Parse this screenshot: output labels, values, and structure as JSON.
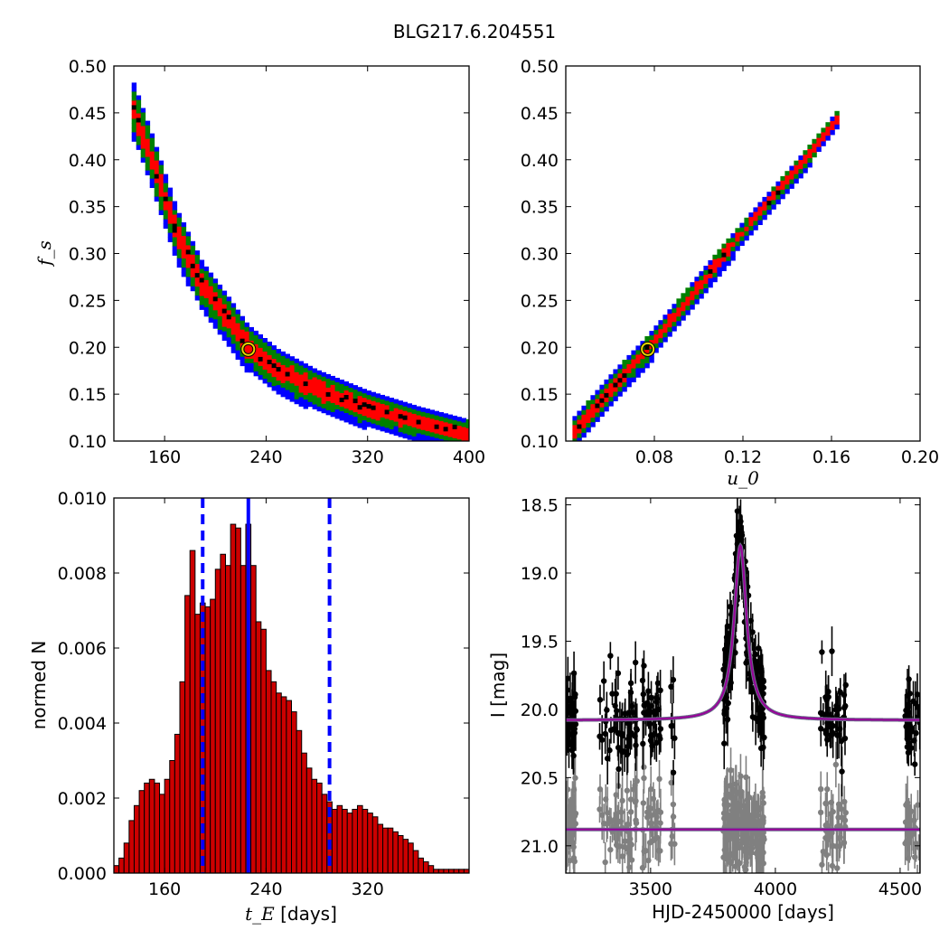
{
  "figure": {
    "title": "BLG217.6.204551"
  },
  "chart_data": [
    {
      "id": "ul",
      "type": "heatmap",
      "title": "",
      "xlabel": "",
      "ylabel": "f_s",
      "xlim": [
        120,
        400
      ],
      "ylim": [
        0.1,
        0.5
      ],
      "xticks": [
        "160",
        "240",
        "320",
        "400"
      ],
      "yticks": [
        "0.10",
        "0.15",
        "0.20",
        "0.25",
        "0.30",
        "0.35",
        "0.40",
        "0.45",
        "0.50"
      ],
      "colors": {
        "outer": "#0000ff",
        "mid": "#008000",
        "inner": "#ff0000",
        "core": "#000000"
      },
      "ridge": [
        [
          134,
          0.46
        ],
        [
          150,
          0.4
        ],
        [
          170,
          0.32
        ],
        [
          190,
          0.265
        ],
        [
          210,
          0.23
        ],
        [
          226,
          0.2
        ],
        [
          250,
          0.175
        ],
        [
          280,
          0.155
        ],
        [
          320,
          0.135
        ],
        [
          360,
          0.12
        ],
        [
          400,
          0.108
        ]
      ],
      "best_fit": [
        226,
        0.198
      ]
    },
    {
      "id": "ur",
      "type": "heatmap",
      "title": "",
      "xlabel": "u_0",
      "ylabel": "",
      "xlim": [
        0.04,
        0.2
      ],
      "ylim": [
        0.1,
        0.5
      ],
      "xticks": [
        "0.08",
        "0.12",
        "0.16",
        "0.20"
      ],
      "yticks": [
        "0.10",
        "0.15",
        "0.20",
        "0.25",
        "0.30",
        "0.35",
        "0.40",
        "0.45",
        "0.50"
      ],
      "colors": {
        "outer": "#0000ff",
        "mid": "#008000",
        "inner": "#ff0000",
        "core": "#000000"
      },
      "ridge": [
        [
          0.043,
          0.107
        ],
        [
          0.062,
          0.16
        ],
        [
          0.077,
          0.198
        ],
        [
          0.095,
          0.25
        ],
        [
          0.112,
          0.3
        ],
        [
          0.13,
          0.35
        ],
        [
          0.148,
          0.4
        ],
        [
          0.163,
          0.445
        ]
      ],
      "best_fit": [
        0.077,
        0.198
      ]
    },
    {
      "id": "ll",
      "type": "bar",
      "title": "",
      "xlabel": "t_E [days]",
      "ylabel": "normed N",
      "xlim": [
        120,
        400
      ],
      "ylim": [
        0,
        0.01
      ],
      "xticks": [
        "160",
        "240",
        "320"
      ],
      "yticks": [
        "0.000",
        "0.002",
        "0.004",
        "0.006",
        "0.008",
        "0.010"
      ],
      "bin_start": 120,
      "bin_width": 4,
      "values": [
        0.0002,
        0.0004,
        0.0008,
        0.0014,
        0.0018,
        0.0022,
        0.0024,
        0.0025,
        0.0024,
        0.0021,
        0.0025,
        0.003,
        0.0037,
        0.0051,
        0.0074,
        0.0086,
        0.0069,
        0.0072,
        0.0071,
        0.0073,
        0.0081,
        0.0085,
        0.0082,
        0.0093,
        0.0092,
        0.0082,
        0.0093,
        0.0082,
        0.0067,
        0.0065,
        0.0054,
        0.0051,
        0.0048,
        0.0047,
        0.0046,
        0.0043,
        0.0038,
        0.0032,
        0.0028,
        0.0025,
        0.0024,
        0.0021,
        0.0019,
        0.0017,
        0.0018,
        0.0017,
        0.0016,
        0.0017,
        0.0018,
        0.0017,
        0.0016,
        0.0015,
        0.0013,
        0.0012,
        0.0012,
        0.0011,
        0.001,
        0.0009,
        0.0008,
        0.0006,
        0.0004,
        0.0003,
        0.0002,
        0.0001,
        0.0001,
        0.0001,
        0.0001,
        0.0001,
        0.0001,
        0.0001
      ],
      "median": 226,
      "interval": [
        190,
        290
      ],
      "colors": {
        "bars": "#cc0000",
        "lines": "#0000ff"
      }
    },
    {
      "id": "lr",
      "type": "scatter",
      "title": "",
      "xlabel": "HJD-2450000 [days]",
      "ylabel": "I [mag]",
      "xlim": [
        3160,
        4580
      ],
      "ylim": [
        21.2,
        18.45
      ],
      "xticks": [
        "3500",
        "4000",
        "4500"
      ],
      "yticks": [
        "18.5",
        "19.0",
        "19.5",
        "20.0",
        "20.5",
        "21.0"
      ],
      "model": {
        "peak_time": 3860,
        "baseline": 20.08,
        "peak_mag": 18.8,
        "width": 30
      },
      "residual_baseline": 20.88,
      "colors": {
        "data": "#000000",
        "residuals": "#808080",
        "model": "#990099",
        "model_edge": "#6a6a8a"
      }
    }
  ]
}
